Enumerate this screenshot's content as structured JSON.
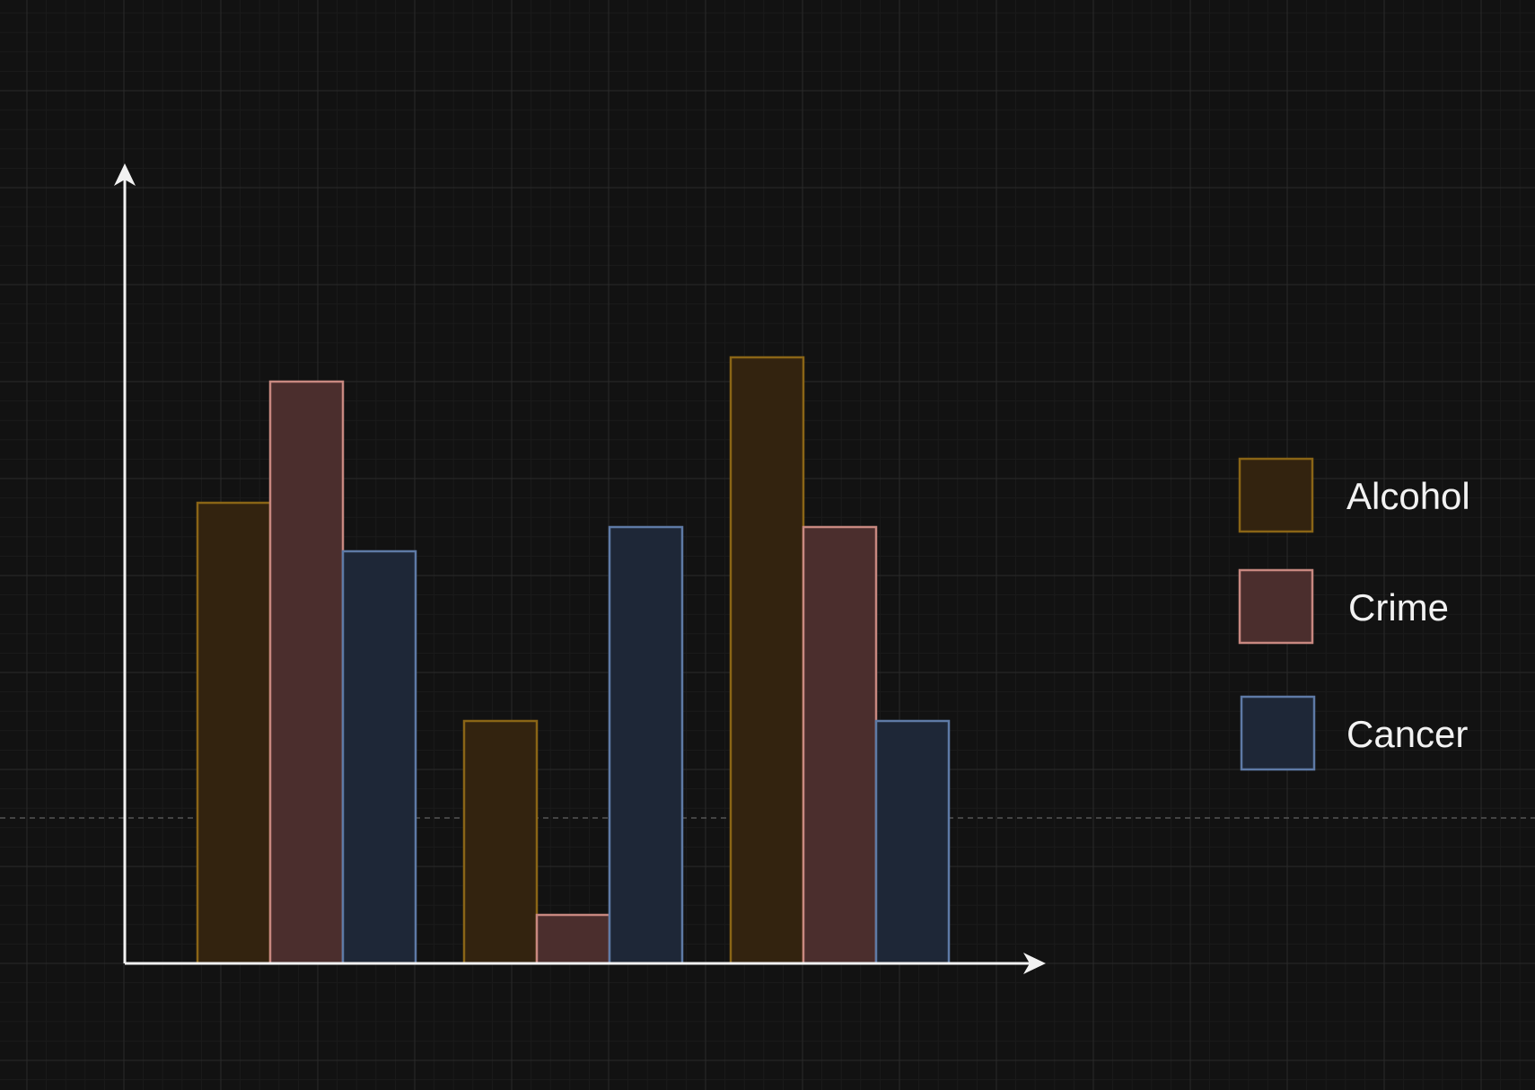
{
  "chart_data": {
    "type": "bar",
    "categories": [
      "",
      "",
      ""
    ],
    "series": [
      {
        "name": "Alcohol",
        "values": [
          4.75,
          2.5,
          6.25
        ],
        "fill": "#33230f",
        "stroke": "#8a6516"
      },
      {
        "name": "Crime",
        "values": [
          6.0,
          0.5,
          4.5
        ],
        "fill": "#4b2e2d",
        "stroke": "#c88880"
      },
      {
        "name": "Cancer",
        "values": [
          4.25,
          4.5,
          2.5
        ],
        "fill": "#1e2737",
        "stroke": "#5e7aa6"
      }
    ],
    "ylim": [
      0,
      8.25
    ],
    "reference_line": 1.5,
    "title": "",
    "xlabel": "",
    "ylabel": "",
    "grid": true,
    "legend": "right"
  },
  "colors": {
    "background": "#121212",
    "grid_minor": "#1b1b1b",
    "grid_major": "#2a2a2a",
    "axis": "#f2f2f2",
    "reference_line": "#555555"
  }
}
